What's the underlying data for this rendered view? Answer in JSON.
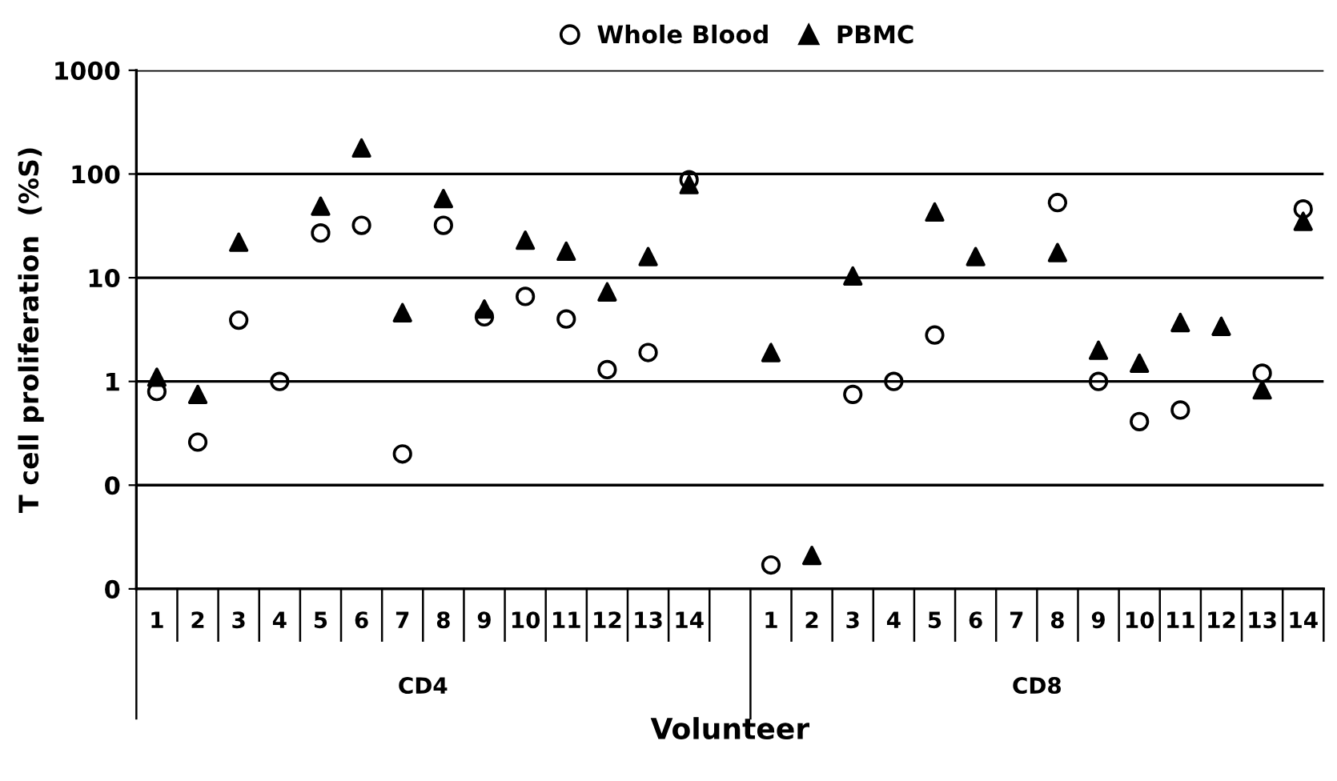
{
  "chart_data": {
    "type": "scatter",
    "ylabel": "T cell proliferation  (%S)",
    "xlabel": "Volunteer",
    "categories": [
      "1",
      "2",
      "3",
      "4",
      "5",
      "6",
      "7",
      "8",
      "9",
      "10",
      "11",
      "12",
      "13",
      "14",
      null,
      "1",
      "2",
      "3",
      "4",
      "5",
      "6",
      "7",
      "8",
      "9",
      "10",
      "11",
      "12",
      "13",
      "14"
    ],
    "series": [
      {
        "name": "Whole Blood",
        "color": "#000000",
        "marker": "circle",
        "values": [
          0.8,
          0.26,
          3.9,
          1.0,
          27,
          32,
          0.2,
          32,
          4.2,
          6.6,
          4.0,
          1.3,
          1.9,
          88,
          null,
          0.017,
          null,
          0.75,
          1.0,
          2.8,
          null,
          null,
          53,
          1.0,
          0.41,
          0.53,
          null,
          1.2,
          46
        ]
      },
      {
        "name": "PBMC",
        "color": "#000000",
        "marker": "triangle",
        "values": [
          1.1,
          0.75,
          22,
          null,
          49,
          178,
          4.6,
          58,
          5.0,
          23,
          18,
          7.3,
          16,
          79,
          null,
          1.9,
          0.021,
          10.4,
          null,
          43,
          16,
          null,
          17.5,
          2.0,
          1.5,
          3.7,
          3.4,
          0.83,
          35
        ]
      }
    ],
    "annotations": [
      "CD4",
      "CD8"
    ],
    "log": "y",
    "ylim": [
      0.01,
      1000
    ],
    "yticks": [
      {
        "value": 0.01,
        "label": "0"
      },
      {
        "value": 0.1,
        "label": "0"
      },
      1,
      10,
      100,
      1000
    ],
    "grid": "y",
    "legend": "top"
  }
}
